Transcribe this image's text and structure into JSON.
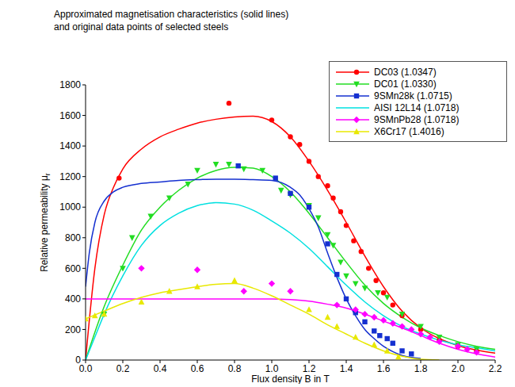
{
  "chart_data": {
    "type": "line",
    "title": [
      "Approximated magnetisation characteristics (solid lines)",
      "and original data points of selected steels"
    ],
    "x_label": "Flux density B in T",
    "y_label": "Relative permeability μr",
    "xlim": [
      0,
      2.2
    ],
    "ylim": [
      0,
      1800
    ],
    "xticks": [
      {
        "value": 0,
        "label": "0.0"
      },
      0.2,
      0.4,
      0.6,
      0.8,
      {
        "value": 1,
        "label": "1.0"
      },
      1.2,
      1.4,
      1.6,
      1.8,
      {
        "value": 2,
        "label": "2.0"
      },
      2.2
    ],
    "yticks": [
      0,
      200,
      400,
      600,
      800,
      1000,
      1200,
      1400,
      1600,
      1800
    ],
    "grid": false,
    "legend": "upper right",
    "series": [
      {
        "name": "DC03 (1.0347)",
        "color": "#ff0000",
        "marker": "circle",
        "line_style": "solid",
        "x": [
          0,
          0.05,
          0.1,
          0.15,
          0.2,
          0.3,
          0.4,
          0.5,
          0.6,
          0.7,
          0.8,
          0.9,
          1.0,
          1.1,
          1.2,
          1.3,
          1.4,
          1.5,
          1.6,
          1.7,
          1.8,
          1.9,
          2.0,
          2.1,
          2.2
        ],
        "values": [
          0,
          600,
          950,
          1130,
          1250,
          1380,
          1460,
          1510,
          1550,
          1575,
          1590,
          1595,
          1560,
          1460,
          1300,
          1110,
          900,
          680,
          480,
          320,
          210,
          140,
          95,
          65,
          45
        ],
        "points": {
          "x": [
            0.18,
            0.77,
            1.0,
            1.1,
            1.15,
            1.2,
            1.25,
            1.3,
            1.33,
            1.37,
            1.4,
            1.44,
            1.48,
            1.52,
            1.56,
            1.6,
            1.65,
            1.7,
            1.8,
            1.9,
            2.0,
            2.1
          ],
          "values": [
            1190,
            1680,
            1570,
            1460,
            1410,
            1300,
            1200,
            1140,
            1060,
            970,
            880,
            780,
            710,
            600,
            520,
            440,
            360,
            290,
            200,
            130,
            90,
            60
          ]
        }
      },
      {
        "name": "DC01 (1.0330)",
        "color": "#22dd22",
        "marker": "triangle_down",
        "line_style": "solid",
        "x": [
          0,
          0.1,
          0.2,
          0.3,
          0.4,
          0.5,
          0.6,
          0.7,
          0.8,
          0.9,
          1.0,
          1.1,
          1.2,
          1.3,
          1.4,
          1.5,
          1.6,
          1.7,
          1.8,
          1.9,
          2.0,
          2.1,
          2.2
        ],
        "values": [
          0,
          350,
          620,
          850,
          1000,
          1110,
          1190,
          1240,
          1260,
          1255,
          1200,
          1100,
          960,
          800,
          640,
          490,
          370,
          280,
          210,
          160,
          120,
          90,
          70
        ],
        "points": {
          "x": [
            0.1,
            0.2,
            0.25,
            0.35,
            0.45,
            0.55,
            0.6,
            0.7,
            0.77,
            0.85,
            0.95,
            1.05,
            1.1,
            1.2,
            1.25,
            1.3,
            1.33,
            1.37,
            1.4,
            1.45,
            1.5,
            1.57,
            1.62,
            1.7,
            1.8,
            1.9,
            2.0,
            2.1
          ],
          "values": [
            300,
            600,
            800,
            940,
            1060,
            1150,
            1240,
            1280,
            1280,
            1250,
            1240,
            1110,
            1080,
            1010,
            930,
            820,
            750,
            640,
            550,
            500,
            470,
            440,
            410,
            300,
            220,
            150,
            100,
            70
          ]
        }
      },
      {
        "name": "9SMn28k (1.0715)",
        "color": "#1530d0",
        "marker": "square",
        "line_style": "solid",
        "x": [
          0,
          0.02,
          0.05,
          0.1,
          0.15,
          0.2,
          0.3,
          0.4,
          0.5,
          0.6,
          0.7,
          0.8,
          0.9,
          1.0,
          1.1,
          1.15,
          1.2,
          1.25,
          1.3,
          1.35,
          1.4,
          1.45,
          1.5,
          1.55,
          1.6,
          1.65,
          1.7,
          1.8
        ],
        "values": [
          480,
          700,
          900,
          1040,
          1100,
          1130,
          1155,
          1165,
          1175,
          1180,
          1183,
          1183,
          1180,
          1175,
          1130,
          1080,
          990,
          870,
          700,
          540,
          400,
          290,
          200,
          140,
          90,
          55,
          30,
          10
        ],
        "points": {
          "x": [
            0.82,
            1.02,
            1.1,
            1.2,
            1.3,
            1.35,
            1.4,
            1.45,
            1.5,
            1.55,
            1.58,
            1.62,
            1.65,
            1.7,
            1.75
          ],
          "values": [
            1270,
            1190,
            1090,
            1000,
            760,
            560,
            400,
            310,
            250,
            190,
            160,
            140,
            110,
            60,
            40
          ]
        }
      },
      {
        "name": "AISI 12L14 (1.0718)",
        "color": "#00e0e0",
        "marker": "none",
        "line_style": "solid",
        "x": [
          0,
          0.05,
          0.1,
          0.2,
          0.3,
          0.4,
          0.5,
          0.6,
          0.7,
          0.8,
          0.9,
          1.0,
          1.1,
          1.2,
          1.3,
          1.4,
          1.5,
          1.6,
          1.7,
          1.8,
          1.9,
          2.0,
          2.1,
          2.2
        ],
        "values": [
          0,
          150,
          300,
          550,
          750,
          880,
          960,
          1010,
          1030,
          1020,
          980,
          910,
          830,
          730,
          610,
          490,
          380,
          290,
          220,
          170,
          130,
          100,
          80,
          60
        ]
      },
      {
        "name": "9SMnPb28 (1.0718)",
        "color": "#ff00ff",
        "marker": "diamond",
        "line_style": "solid",
        "x": [
          0,
          0.2,
          0.4,
          0.6,
          0.8,
          1.0,
          1.1,
          1.2,
          1.3,
          1.4,
          1.5,
          1.6,
          1.7,
          1.8,
          1.9,
          2.0,
          2.1,
          2.2
        ],
        "values": [
          400,
          400,
          400,
          400,
          400,
          400,
          395,
          385,
          365,
          340,
          300,
          255,
          210,
          160,
          110,
          70,
          40,
          20
        ],
        "points": {
          "x": [
            0.3,
            0.6,
            0.85,
            1.0,
            1.1,
            1.35,
            1.45,
            1.5,
            1.55,
            1.6,
            1.65,
            1.7,
            1.75,
            1.8,
            1.85,
            1.9,
            2.0,
            2.05,
            2.1
          ],
          "values": [
            600,
            590,
            450,
            500,
            450,
            360,
            330,
            300,
            280,
            260,
            240,
            220,
            200,
            170,
            150,
            120,
            90,
            70,
            50
          ]
        }
      },
      {
        "name": "X6Cr17 (1.4016)",
        "color": "#e8e800",
        "marker": "triangle",
        "line_style": "solid",
        "x": [
          0,
          0.1,
          0.2,
          0.3,
          0.4,
          0.5,
          0.6,
          0.7,
          0.8,
          0.9,
          1.0,
          1.1,
          1.2,
          1.3,
          1.4,
          1.5,
          1.6,
          1.7,
          1.8,
          1.9
        ],
        "values": [
          270,
          320,
          370,
          410,
          440,
          460,
          480,
          495,
          500,
          470,
          420,
          360,
          300,
          230,
          170,
          110,
          60,
          25,
          5,
          0
        ],
        "points": {
          "x": [
            0,
            0.05,
            0.1,
            0.3,
            0.45,
            0.6,
            0.8,
            1.2,
            1.3,
            1.35,
            1.45,
            1.55,
            1.62,
            1.68
          ],
          "values": [
            270,
            290,
            300,
            380,
            450,
            480,
            520,
            330,
            280,
            220,
            150,
            100,
            60,
            20
          ]
        }
      }
    ]
  }
}
